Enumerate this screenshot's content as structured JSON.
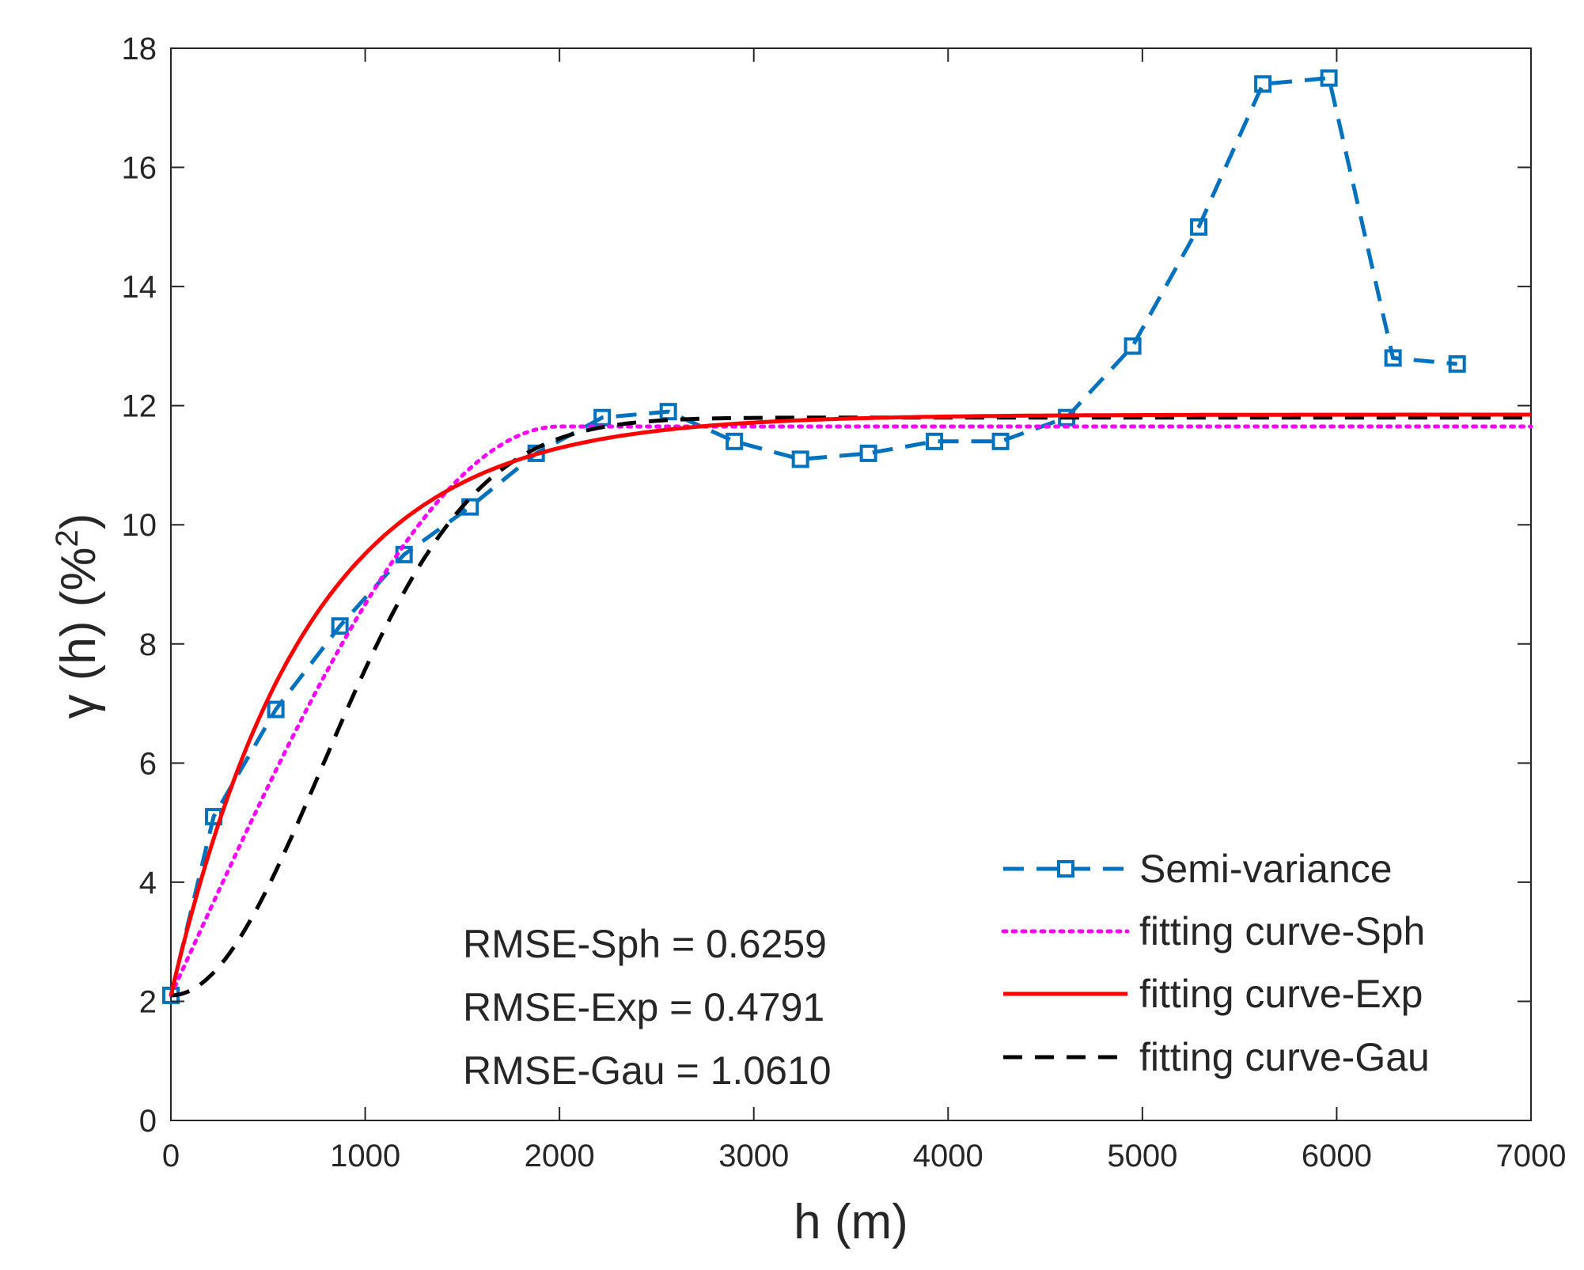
{
  "chart_data": {
    "type": "line",
    "xlabel": "h (m)",
    "ylabel_base": "γ (h) (%",
    "ylabel_sup": "2",
    "ylabel_close": ")",
    "xlim": [
      0,
      7000
    ],
    "ylim": [
      0,
      18
    ],
    "x_ticks": [
      0,
      1000,
      2000,
      3000,
      4000,
      5000,
      6000,
      7000
    ],
    "y_ticks": [
      0,
      2,
      4,
      6,
      8,
      10,
      12,
      14,
      16,
      18
    ],
    "grid": false,
    "legend_position": "bottom-right",
    "series": [
      {
        "name": "Semi-variance",
        "style": "dashed-square-markers",
        "color": "#0072bd",
        "x": [
          0,
          220,
          540,
          870,
          1200,
          1540,
          1880,
          2220,
          2560,
          2900,
          3240,
          3590,
          3930,
          4270,
          4610,
          4950,
          5290,
          5620,
          5960,
          6290,
          6620
        ],
        "y": [
          2.1,
          5.1,
          6.9,
          8.3,
          9.5,
          10.3,
          11.2,
          11.8,
          11.9,
          11.4,
          11.1,
          11.2,
          11.4,
          11.4,
          11.8,
          13.0,
          15.0,
          17.4,
          17.5,
          12.8,
          12.7
        ]
      },
      {
        "name": "fitting curve-Sph",
        "style": "dotted",
        "color": "#ff00ff",
        "model": "spherical",
        "nugget": 2.1,
        "sill": 11.65,
        "range": 2000
      },
      {
        "name": "fitting curve-Exp",
        "style": "solid",
        "color": "#ff0000",
        "model": "exponential",
        "nugget": 2.1,
        "sill": 11.85,
        "range": 2100
      },
      {
        "name": "fitting curve-Gau",
        "style": "dashed",
        "color": "#000000",
        "model": "gaussian",
        "nugget": 2.1,
        "sill": 11.8,
        "range": 1900
      }
    ],
    "annotations": [
      "RMSE-Sph = 0.6259",
      "RMSE-Exp = 0.4791",
      "RMSE-Gau = 1.0610"
    ]
  }
}
